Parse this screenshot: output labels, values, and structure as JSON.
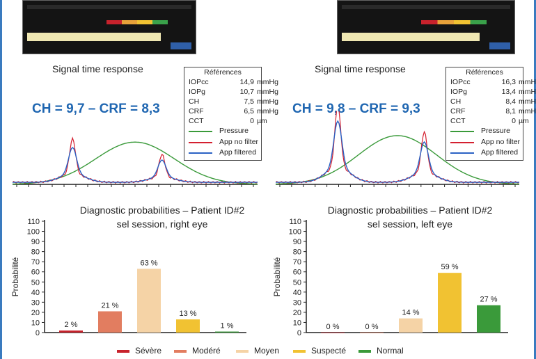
{
  "signal": {
    "title": "Signal time response",
    "ref_header": "Références",
    "legend": [
      {
        "label": "Pressure",
        "color": "#3a9a3a"
      },
      {
        "label": "App no filter",
        "color": "#d42030"
      },
      {
        "label": "App filtered",
        "color": "#2a62c4"
      }
    ],
    "panels": [
      {
        "headline": "CH = 9,7 – CRF = 8,3",
        "refs": [
          {
            "label": "IOPcc",
            "value": "14,9",
            "unit": "mmHg"
          },
          {
            "label": "IOPg",
            "value": "10,7",
            "unit": "mmHg"
          },
          {
            "label": "CH",
            "value": "7,5",
            "unit": "mmHg"
          },
          {
            "label": "CRF",
            "value": "6,5",
            "unit": "mmHg"
          },
          {
            "label": "CCT",
            "value": "0",
            "unit": "µm"
          }
        ]
      },
      {
        "headline": "CH = 9,8 – CRF = 9,3",
        "refs": [
          {
            "label": "IOPcc",
            "value": "16,3",
            "unit": "mmHg"
          },
          {
            "label": "IOPg",
            "value": "13,4",
            "unit": "mmHg"
          },
          {
            "label": "CH",
            "value": "8,4",
            "unit": "mmHg"
          },
          {
            "label": "CRF",
            "value": "8,1",
            "unit": "mmHg"
          },
          {
            "label": "CCT",
            "value": "0",
            "unit": "µm"
          }
        ]
      }
    ]
  },
  "chart_data": [
    {
      "type": "bar",
      "title": "Diagnostic probabilities – Patient ID#2",
      "subtitle": "sel session, right eye",
      "ylabel": "Probabilité",
      "ylim": [
        0,
        110
      ],
      "yticks": [
        0,
        10,
        20,
        30,
        40,
        50,
        60,
        70,
        80,
        90,
        100,
        110
      ],
      "categories": [
        "Sévère",
        "Modéré",
        "Moyen",
        "Suspecté",
        "Normal"
      ],
      "values": [
        2,
        21,
        63,
        13,
        1
      ],
      "labels": [
        "2 %",
        "21 %",
        "63 %",
        "13 %",
        "1 %"
      ]
    },
    {
      "type": "bar",
      "title": "Diagnostic probabilities – Patient ID#2",
      "subtitle": "sel session, left eye",
      "ylabel": "Probabilité",
      "ylim": [
        0,
        110
      ],
      "yticks": [
        0,
        10,
        20,
        30,
        40,
        50,
        60,
        70,
        80,
        90,
        100,
        110
      ],
      "categories": [
        "Sévère",
        "Modéré",
        "Moyen",
        "Suspecté",
        "Normal"
      ],
      "values": [
        0,
        0,
        14,
        59,
        27
      ],
      "labels": [
        "0 %",
        "0 %",
        "14 %",
        "59 %",
        "27 %"
      ]
    }
  ],
  "categories_legend": [
    {
      "label": "Sévère",
      "color": "#c8222c"
    },
    {
      "label": "Modéré",
      "color": "#e27d60"
    },
    {
      "label": "Moyen",
      "color": "#f5d3a6"
    },
    {
      "label": "Suspecté",
      "color": "#f1c232"
    },
    {
      "label": "Normal",
      "color": "#3a9a3a"
    }
  ]
}
